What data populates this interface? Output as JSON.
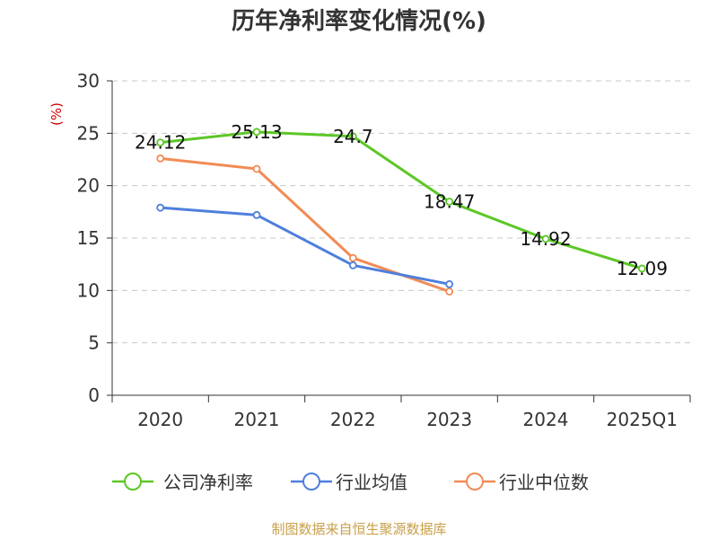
{
  "chart_data": {
    "type": "line",
    "title": "历年净利率变化情况(%)",
    "ylabel": "(%)",
    "xlabel": "",
    "categories": [
      "2020",
      "2021",
      "2022",
      "2023",
      "2024",
      "2025Q1"
    ],
    "ylim": [
      0,
      30
    ],
    "yticks": [
      0,
      5,
      10,
      15,
      20,
      25,
      30
    ],
    "grid": true,
    "legend_position": "bottom",
    "series": [
      {
        "name": "公司净利率",
        "color": "#5cc726",
        "values": [
          24.12,
          25.13,
          24.7,
          18.47,
          14.92,
          12.09
        ],
        "labels": [
          "24.12",
          "25.13",
          "24.7",
          "18.47",
          "14.92",
          "12.09"
        ]
      },
      {
        "name": "行业均值",
        "color": "#4f7fdc",
        "values": [
          17.9,
          17.2,
          12.4,
          10.6,
          null,
          null
        ]
      },
      {
        "name": "行业中位数",
        "color": "#f28b54",
        "values": [
          22.6,
          21.6,
          13.1,
          9.9,
          null,
          null
        ]
      }
    ]
  },
  "footer": {
    "source": "制图数据来自恒生聚源数据库"
  }
}
